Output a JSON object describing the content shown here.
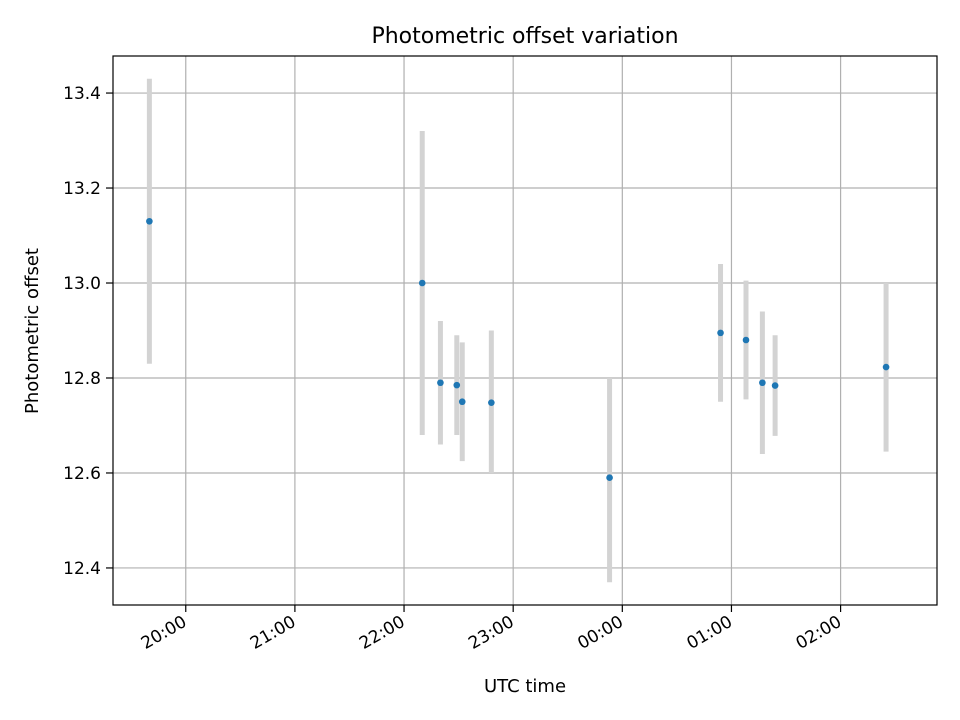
{
  "chart_data": {
    "type": "scatter",
    "title": "Photometric offset variation",
    "xlabel": "UTC time",
    "ylabel": "Photometric offset",
    "x_type": "time",
    "xlim": [
      "19:20",
      "02:53"
    ],
    "ylim": [
      12.322,
      13.478
    ],
    "x_ticks": [
      "20:00",
      "21:00",
      "22:00",
      "23:00",
      "00:00",
      "01:00",
      "02:00"
    ],
    "y_ticks": [
      12.4,
      12.6,
      12.8,
      13.0,
      13.2,
      13.4
    ],
    "y_tick_labels": [
      "12.4",
      "12.6",
      "12.8",
      "13.0",
      "13.2",
      "13.4"
    ],
    "grid": true,
    "point_color": "#1f77b4",
    "errorbar_color": "#d3d3d3",
    "points": [
      {
        "x": "19:40",
        "y": 13.13,
        "ymin": 12.83,
        "ymax": 13.43
      },
      {
        "x": "22:10",
        "y": 13.0,
        "ymin": 12.68,
        "ymax": 13.32
      },
      {
        "x": "22:20",
        "y": 12.79,
        "ymin": 12.66,
        "ymax": 12.92
      },
      {
        "x": "22:29",
        "y": 12.785,
        "ymin": 12.68,
        "ymax": 12.89
      },
      {
        "x": "22:32",
        "y": 12.75,
        "ymin": 12.625,
        "ymax": 12.875
      },
      {
        "x": "22:48",
        "y": 12.748,
        "ymin": 12.6,
        "ymax": 12.9
      },
      {
        "x": "23:53",
        "y": 12.59,
        "ymin": 12.37,
        "ymax": 12.8
      },
      {
        "x": "00:54",
        "y": 12.895,
        "ymin": 12.75,
        "ymax": 13.04
      },
      {
        "x": "01:08",
        "y": 12.88,
        "ymin": 12.755,
        "ymax": 13.005
      },
      {
        "x": "01:17",
        "y": 12.79,
        "ymin": 12.64,
        "ymax": 12.94
      },
      {
        "x": "01:24",
        "y": 12.784,
        "ymin": 12.678,
        "ymax": 12.89
      },
      {
        "x": "02:25",
        "y": 12.823,
        "ymin": 12.645,
        "ymax": 13.0
      }
    ]
  }
}
